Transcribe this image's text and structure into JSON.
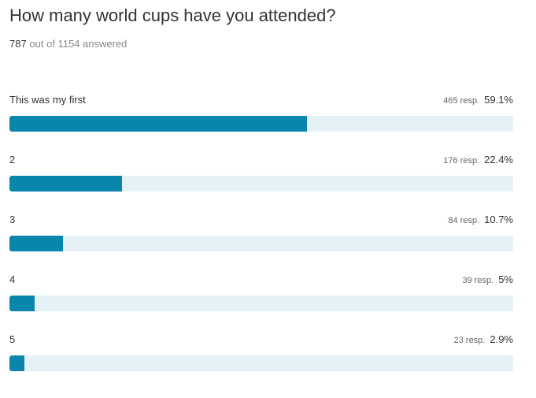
{
  "question": {
    "title": "How many world cups have you attended?",
    "answered_count": "787",
    "answered_suffix": " out of 1154 answered"
  },
  "colors": {
    "bar_fill": "#0a86ad",
    "bar_track": "#e4f1f5"
  },
  "options": [
    {
      "label": "This was my first",
      "responses": "465 resp.",
      "percent": "59.1%",
      "fraction": 0.591
    },
    {
      "label": "2",
      "responses": "176 resp.",
      "percent": "22.4%",
      "fraction": 0.224
    },
    {
      "label": "3",
      "responses": "84 resp.",
      "percent": "10.7%",
      "fraction": 0.107
    },
    {
      "label": "4",
      "responses": "39 resp.",
      "percent": "5%",
      "fraction": 0.05
    },
    {
      "label": "5",
      "responses": "23 resp.",
      "percent": "2.9%",
      "fraction": 0.029
    }
  ]
}
